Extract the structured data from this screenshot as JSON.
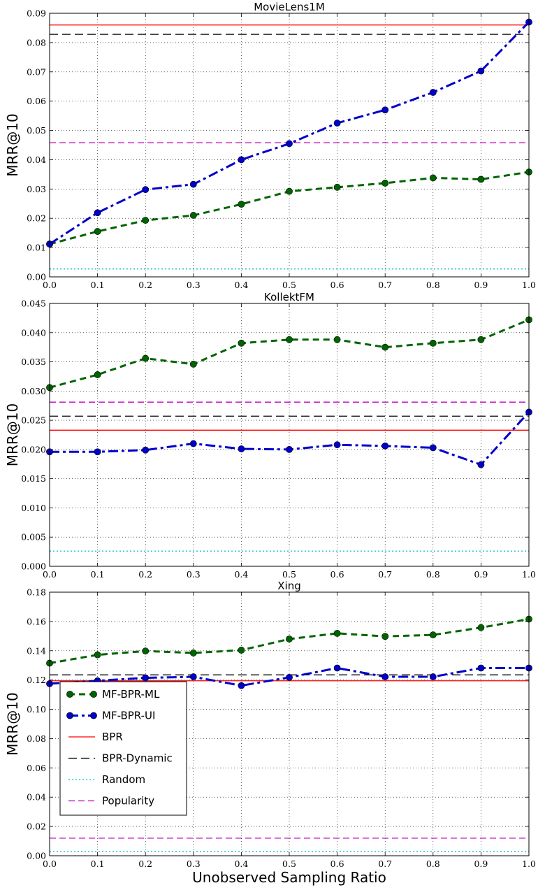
{
  "figure": {
    "xlabel": "Unobserved Sampling Ratio"
  },
  "legend": {
    "placement": "lower-left of third panel",
    "entries": [
      {
        "label": "MF-BPR-ML",
        "color": "#006400",
        "style": "dashed-marker"
      },
      {
        "label": "MF-BPR-UI",
        "color": "#0000cc",
        "style": "dashdot-marker"
      },
      {
        "label": "BPR",
        "color": "#ff0000",
        "style": "solid"
      },
      {
        "label": "BPR-Dynamic",
        "color": "#000000",
        "style": "dashed"
      },
      {
        "label": "Random",
        "color": "#00bfbf",
        "style": "dotted"
      },
      {
        "label": "Popularity",
        "color": "#bf00bf",
        "style": "dashed"
      }
    ]
  },
  "chart_data": [
    {
      "type": "line",
      "title": "MovieLens1M",
      "ylabel": "MRR@10",
      "xlim": [
        0.0,
        1.0
      ],
      "ylim": [
        0.0,
        0.09
      ],
      "grid": true,
      "x_ticks": [
        "0.0",
        "0.1",
        "0.2",
        "0.3",
        "0.4",
        "0.5",
        "0.6",
        "0.7",
        "0.8",
        "0.9",
        "1.0"
      ],
      "y_ticks": [
        "0.00",
        "0.01",
        "0.02",
        "0.03",
        "0.04",
        "0.05",
        "0.06",
        "0.07",
        "0.08",
        "0.09"
      ],
      "x": [
        0.0,
        0.1,
        0.2,
        0.3,
        0.4,
        0.5,
        0.6,
        0.7,
        0.8,
        0.9,
        1.0
      ],
      "series": [
        {
          "name": "MF-BPR-ML",
          "values": [
            0.0112,
            0.0155,
            0.0193,
            0.021,
            0.0248,
            0.0292,
            0.0306,
            0.032,
            0.0338,
            0.0333,
            0.0358
          ]
        },
        {
          "name": "MF-BPR-UI",
          "values": [
            0.0112,
            0.0219,
            0.0298,
            0.0316,
            0.04,
            0.0455,
            0.0525,
            0.057,
            0.063,
            0.0703,
            0.087
          ]
        }
      ],
      "hlines": [
        {
          "name": "BPR",
          "value": 0.086
        },
        {
          "name": "BPR-Dynamic",
          "value": 0.0828
        },
        {
          "name": "Random",
          "value": 0.0027
        },
        {
          "name": "Popularity",
          "value": 0.0458
        }
      ]
    },
    {
      "type": "line",
      "title": "KollektFM",
      "ylabel": "MRR@10",
      "xlim": [
        0.0,
        1.0
      ],
      "ylim": [
        0.0,
        0.045
      ],
      "grid": true,
      "x_ticks": [
        "0.0",
        "0.1",
        "0.2",
        "0.3",
        "0.4",
        "0.5",
        "0.6",
        "0.7",
        "0.8",
        "0.9",
        "1.0"
      ],
      "y_ticks": [
        "0.000",
        "0.005",
        "0.010",
        "0.015",
        "0.020",
        "0.025",
        "0.030",
        "0.035",
        "0.040",
        "0.045"
      ],
      "x": [
        0.0,
        0.1,
        0.2,
        0.3,
        0.4,
        0.5,
        0.6,
        0.7,
        0.8,
        0.9,
        1.0
      ],
      "series": [
        {
          "name": "MF-BPR-ML",
          "values": [
            0.0306,
            0.0328,
            0.0356,
            0.0346,
            0.0382,
            0.0388,
            0.0388,
            0.0375,
            0.0382,
            0.0388,
            0.0422
          ]
        },
        {
          "name": "MF-BPR-UI",
          "values": [
            0.0196,
            0.0196,
            0.0199,
            0.021,
            0.0201,
            0.02,
            0.0208,
            0.0206,
            0.0203,
            0.0174,
            0.0264
          ]
        }
      ],
      "hlines": [
        {
          "name": "BPR",
          "value": 0.0233
        },
        {
          "name": "BPR-Dynamic",
          "value": 0.0257
        },
        {
          "name": "Random",
          "value": 0.0026
        },
        {
          "name": "Popularity",
          "value": 0.0281
        }
      ]
    },
    {
      "type": "line",
      "title": "Xing",
      "ylabel": "MRR@10",
      "xlim": [
        0.0,
        1.0
      ],
      "ylim": [
        0.0,
        0.18
      ],
      "grid": true,
      "x_ticks": [
        "0.0",
        "0.1",
        "0.2",
        "0.3",
        "0.4",
        "0.5",
        "0.6",
        "0.7",
        "0.8",
        "0.9",
        "1.0"
      ],
      "y_ticks": [
        "0.00",
        "0.02",
        "0.04",
        "0.06",
        "0.08",
        "0.10",
        "0.12",
        "0.14",
        "0.16",
        "0.18"
      ],
      "x": [
        0.0,
        0.1,
        0.2,
        0.3,
        0.4,
        0.5,
        0.6,
        0.7,
        0.8,
        0.9,
        1.0
      ],
      "series": [
        {
          "name": "MF-BPR-ML",
          "values": [
            0.1315,
            0.1372,
            0.1398,
            0.1385,
            0.1404,
            0.148,
            0.1519,
            0.1498,
            0.1508,
            0.1558,
            0.1616
          ]
        },
        {
          "name": "MF-BPR-UI",
          "values": [
            0.1175,
            0.1195,
            0.1215,
            0.1222,
            0.1162,
            0.1218,
            0.1282,
            0.1222,
            0.1222,
            0.1282,
            0.1282
          ]
        }
      ],
      "hlines": [
        {
          "name": "BPR",
          "value": 0.1195
        },
        {
          "name": "BPR-Dynamic",
          "value": 0.1235
        },
        {
          "name": "Random",
          "value": 0.003
        },
        {
          "name": "Popularity",
          "value": 0.012
        }
      ]
    }
  ]
}
